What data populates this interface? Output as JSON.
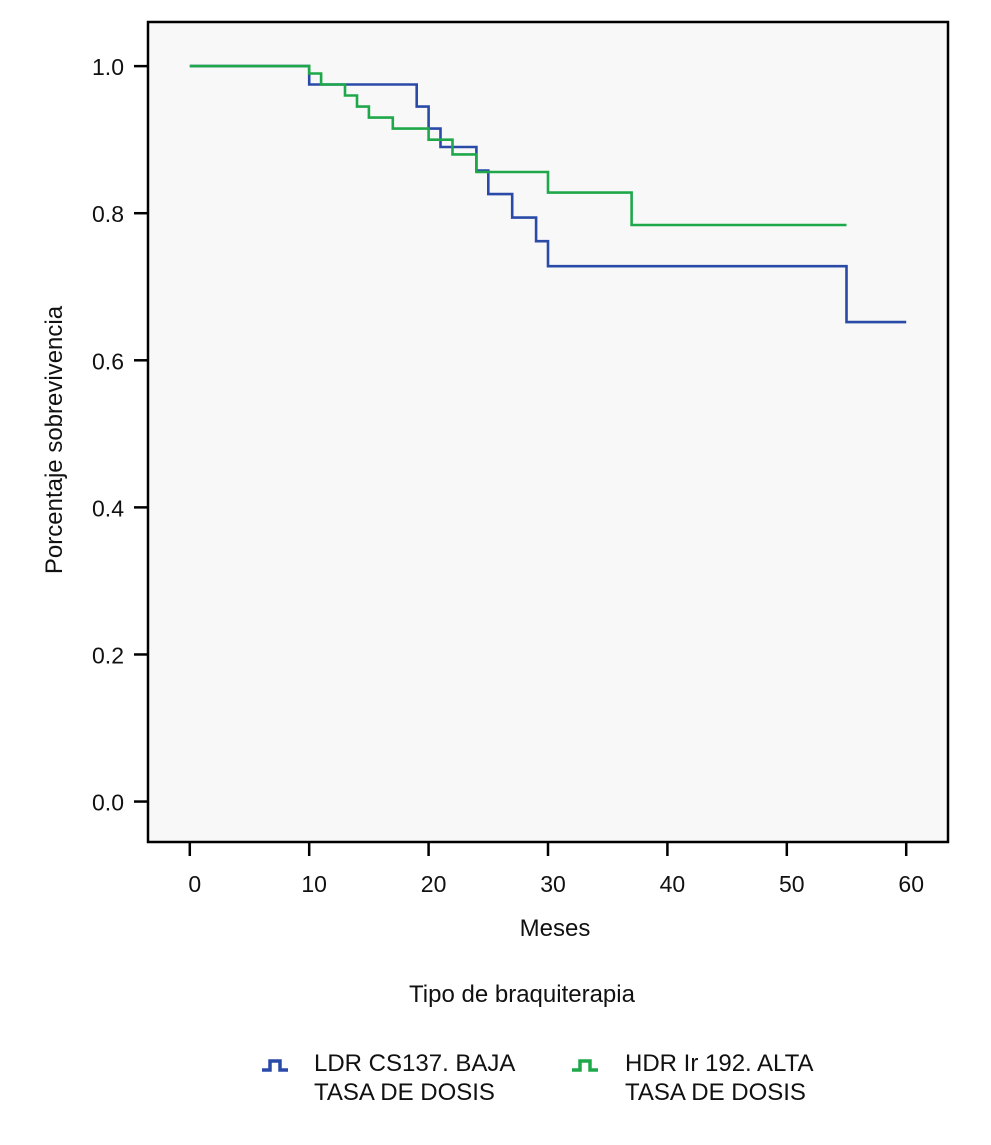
{
  "chart_data": {
    "type": "line",
    "step": true,
    "xlabel": "Meses",
    "ylabel": "Porcentaje sobrevivencia",
    "xlim": [
      -3.5,
      63.5
    ],
    "ylim": [
      -0.055,
      1.06
    ],
    "xticks": [
      "0",
      "10",
      "20",
      "30",
      "40",
      "50",
      "60"
    ],
    "yticks": [
      "0.0",
      "0.2",
      "0.4",
      "0.6",
      "0.8",
      "1.0"
    ],
    "grid": false,
    "background": "#f8f8f8",
    "legend": {
      "title": "Tipo de braquiterapia",
      "placement": "bottom",
      "entries": [
        {
          "line1": "LDR CS137. BAJA",
          "line2": "TASA DE DOSIS"
        },
        {
          "line1": "HDR Ir 192. ALTA",
          "line2": "TASA DE DOSIS"
        }
      ]
    },
    "series": [
      {
        "name": "LDR CS137. BAJA TASA DE DOSIS",
        "color": "#2a4aa8",
        "points": [
          [
            0,
            1.0
          ],
          [
            10,
            0.975
          ],
          [
            19,
            0.945
          ],
          [
            20,
            0.915
          ],
          [
            21,
            0.89
          ],
          [
            24,
            0.858
          ],
          [
            25,
            0.826
          ],
          [
            27,
            0.794
          ],
          [
            29,
            0.762
          ],
          [
            30,
            0.728
          ],
          [
            55,
            0.652
          ],
          [
            60,
            0.652
          ]
        ]
      },
      {
        "name": "HDR Ir 192. ALTA TASA DE DOSIS",
        "color": "#1fa84a",
        "points": [
          [
            0,
            1.0
          ],
          [
            10,
            0.99
          ],
          [
            11,
            0.975
          ],
          [
            13,
            0.96
          ],
          [
            14,
            0.945
          ],
          [
            15,
            0.93
          ],
          [
            17,
            0.915
          ],
          [
            20,
            0.9
          ],
          [
            22,
            0.88
          ],
          [
            24,
            0.856
          ],
          [
            30,
            0.828
          ],
          [
            37,
            0.784
          ],
          [
            55,
            0.784
          ]
        ]
      }
    ]
  }
}
